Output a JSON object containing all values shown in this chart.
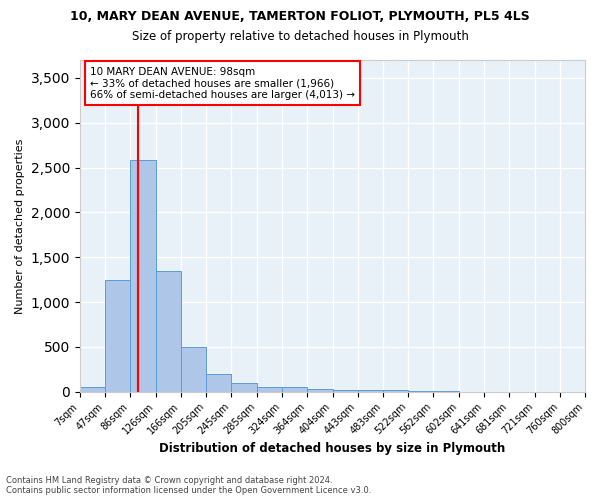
{
  "title_line1": "10, MARY DEAN AVENUE, TAMERTON FOLIOT, PLYMOUTH, PL5 4LS",
  "title_line2": "Size of property relative to detached houses in Plymouth",
  "xlabel": "Distribution of detached houses by size in Plymouth",
  "ylabel": "Number of detached properties",
  "bins": [
    "7sqm",
    "47sqm",
    "86sqm",
    "126sqm",
    "166sqm",
    "205sqm",
    "245sqm",
    "285sqm",
    "324sqm",
    "364sqm",
    "404sqm",
    "443sqm",
    "483sqm",
    "522sqm",
    "562sqm",
    "602sqm",
    "641sqm",
    "681sqm",
    "721sqm",
    "760sqm",
    "800sqm"
  ],
  "bin_edges": [
    7,
    47,
    86,
    126,
    166,
    205,
    245,
    285,
    324,
    364,
    404,
    443,
    483,
    522,
    562,
    602,
    641,
    681,
    721,
    760,
    800
  ],
  "values": [
    50,
    1250,
    2580,
    1350,
    500,
    200,
    100,
    55,
    50,
    30,
    20,
    20,
    15,
    5,
    3,
    2,
    2,
    1,
    1,
    1
  ],
  "bar_color": "#aec6e8",
  "bar_edge_color": "#5b9bd5",
  "property_line_x": 98,
  "property_line_color": "red",
  "annotation_text": "10 MARY DEAN AVENUE: 98sqm\n← 33% of detached houses are smaller (1,966)\n66% of semi-detached houses are larger (4,013) →",
  "annotation_box_color": "white",
  "annotation_box_edge": "red",
  "ylim": [
    0,
    3700
  ],
  "yticks": [
    0,
    500,
    1000,
    1500,
    2000,
    2500,
    3000,
    3500
  ],
  "background_color": "#e8f0f8",
  "grid_color": "white",
  "footer_line1": "Contains HM Land Registry data © Crown copyright and database right 2024.",
  "footer_line2": "Contains public sector information licensed under the Open Government Licence v3.0."
}
